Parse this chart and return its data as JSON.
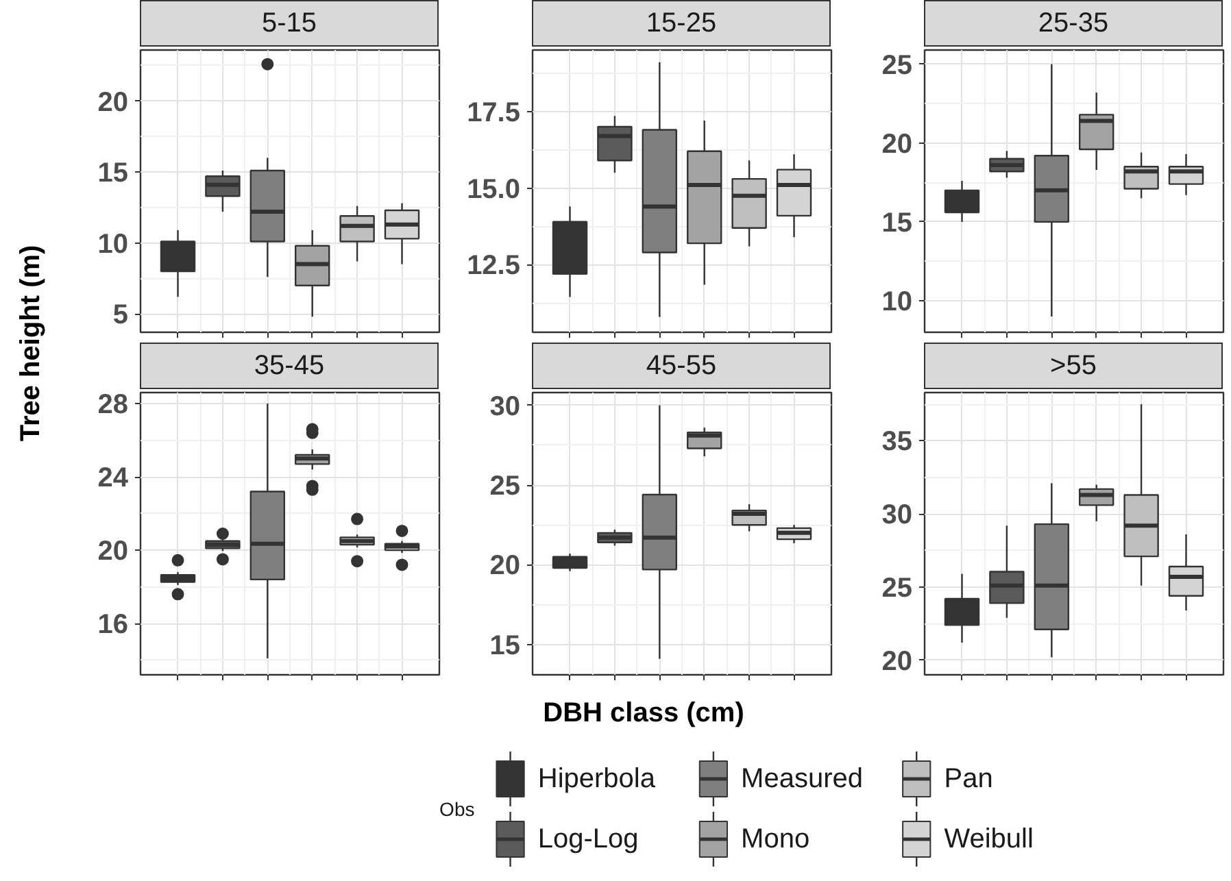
{
  "chart_data": [
    {
      "type": "box",
      "title": "5-15",
      "ylabel": "Tree height (m)",
      "legend": "bottom",
      "legend_title": "Obs",
      "categories": [
        null
      ],
      "ylim": [
        3.7,
        23.6
      ],
      "yticks": [
        5,
        10,
        15,
        20
      ],
      "grid": true,
      "series": [
        {
          "name": "Hiperbola",
          "color": "#333333",
          "boxes": [
            {
              "low": 6.2,
              "q1": 8.0,
              "median": 8.4,
              "q3": 10.1,
              "high": 10.9
            }
          ]
        },
        {
          "name": "Log-Log",
          "color": "#5a5a5a",
          "boxes": [
            {
              "low": 12.2,
              "q1": 13.3,
              "median": 14.1,
              "q3": 14.7,
              "high": 15.1
            }
          ]
        },
        {
          "name": "Measured",
          "color": "#7f7f7f",
          "boxes": [
            {
              "low": 7.6,
              "q1": 10.1,
              "median": 12.2,
              "q3": 15.1,
              "high": 16.0,
              "outliers": [
                22.6
              ]
            }
          ]
        },
        {
          "name": "Mono",
          "color": "#a3a3a3",
          "boxes": [
            {
              "low": 4.8,
              "q1": 7.0,
              "median": 8.5,
              "q3": 9.8,
              "high": 10.9
            }
          ]
        },
        {
          "name": "Pan",
          "color": "#bfbfbf",
          "boxes": [
            {
              "low": 8.7,
              "q1": 10.1,
              "median": 11.2,
              "q3": 11.9,
              "high": 12.6
            }
          ]
        },
        {
          "name": "Weibull",
          "color": "#d4d4d4",
          "boxes": [
            {
              "low": 8.5,
              "q1": 10.3,
              "median": 11.3,
              "q3": 12.3,
              "high": 12.8
            }
          ]
        }
      ]
    },
    {
      "type": "box",
      "title": "15-25",
      "categories": [
        null
      ],
      "ylim": [
        10.3,
        19.5
      ],
      "yticks": [
        {
          "value": 12.5,
          "label": "12.5"
        },
        {
          "value": 15,
          "label": "15.0"
        },
        {
          "value": 17.5,
          "label": "17.5"
        }
      ],
      "grid": true,
      "series": [
        {
          "color": "#333333",
          "boxes": [
            {
              "low": 11.45,
              "q1": 12.2,
              "median": 13.0,
              "q3": 13.9,
              "high": 14.4
            }
          ]
        },
        {
          "color": "#5a5a5a",
          "boxes": [
            {
              "low": 15.5,
              "q1": 15.9,
              "median": 16.7,
              "q3": 17.0,
              "high": 17.35
            }
          ]
        },
        {
          "color": "#7f7f7f",
          "boxes": [
            {
              "low": 10.8,
              "q1": 12.9,
              "median": 14.4,
              "q3": 16.9,
              "high": 19.1
            }
          ]
        },
        {
          "color": "#a3a3a3",
          "boxes": [
            {
              "low": 11.85,
              "q1": 13.2,
              "median": 15.1,
              "q3": 16.2,
              "high": 17.2
            }
          ]
        },
        {
          "color": "#bfbfbf",
          "boxes": [
            {
              "low": 13.1,
              "q1": 13.7,
              "median": 14.75,
              "q3": 15.3,
              "high": 15.9
            }
          ]
        },
        {
          "color": "#d4d4d4",
          "boxes": [
            {
              "low": 13.4,
              "q1": 14.1,
              "median": 15.1,
              "q3": 15.6,
              "high": 16.1
            }
          ]
        }
      ]
    },
    {
      "type": "box",
      "title": "25-35",
      "categories": [
        null
      ],
      "ylim": [
        8.0,
        25.9
      ],
      "yticks": [
        10,
        15,
        20,
        25
      ],
      "grid": true,
      "series": [
        {
          "color": "#333333",
          "boxes": [
            {
              "low": 15.0,
              "q1": 15.6,
              "median": 16.3,
              "q3": 17.0,
              "high": 17.6
            }
          ]
        },
        {
          "color": "#5a5a5a",
          "boxes": [
            {
              "low": 17.8,
              "q1": 18.2,
              "median": 18.6,
              "q3": 19.0,
              "high": 19.5
            }
          ]
        },
        {
          "color": "#7f7f7f",
          "boxes": [
            {
              "low": 9.0,
              "q1": 15.0,
              "median": 17.0,
              "q3": 19.2,
              "high": 25.0
            }
          ]
        },
        {
          "color": "#a3a3a3",
          "boxes": [
            {
              "low": 18.3,
              "q1": 19.6,
              "median": 21.4,
              "q3": 21.8,
              "high": 23.2
            }
          ]
        },
        {
          "color": "#bfbfbf",
          "boxes": [
            {
              "low": 16.5,
              "q1": 17.1,
              "median": 18.2,
              "q3": 18.5,
              "high": 19.4
            }
          ]
        },
        {
          "color": "#d4d4d4",
          "boxes": [
            {
              "low": 16.7,
              "q1": 17.4,
              "median": 18.2,
              "q3": 18.5,
              "high": 19.3
            }
          ]
        }
      ]
    },
    {
      "type": "box",
      "title": "35-45",
      "categories": [
        null
      ],
      "ylim": [
        13.2,
        28.6
      ],
      "yticks": [
        16,
        20,
        24,
        28
      ],
      "grid": true,
      "series": [
        {
          "color": "#333333",
          "boxes": [
            {
              "low": 18.1,
              "q1": 18.26,
              "median": 18.45,
              "q3": 18.65,
              "high": 18.8,
              "outliers": [
                19.45,
                17.6
              ]
            }
          ]
        },
        {
          "color": "#5a5a5a",
          "boxes": [
            {
              "low": 19.95,
              "q1": 20.1,
              "median": 20.3,
              "q3": 20.5,
              "high": 20.65,
              "outliers": [
                20.9,
                19.5
              ]
            }
          ]
        },
        {
          "color": "#7f7f7f",
          "boxes": [
            {
              "low": 14.1,
              "q1": 18.4,
              "median": 20.35,
              "q3": 23.2,
              "high": 28.0
            }
          ]
        },
        {
          "color": "#a3a3a3",
          "boxes": [
            {
              "low": 24.4,
              "q1": 24.7,
              "median": 25.0,
              "q3": 25.2,
              "high": 25.5,
              "outliers": [
                26.4,
                26.6,
                23.3,
                23.5
              ]
            }
          ]
        },
        {
          "color": "#bfbfbf",
          "boxes": [
            {
              "low": 20.15,
              "q1": 20.3,
              "median": 20.5,
              "q3": 20.7,
              "high": 20.85,
              "outliers": [
                21.7,
                19.4
              ]
            }
          ]
        },
        {
          "color": "#d4d4d4",
          "boxes": [
            {
              "low": 19.85,
              "q1": 20.0,
              "median": 20.2,
              "q3": 20.35,
              "high": 20.5,
              "outliers": [
                21.05,
                19.2
              ]
            }
          ]
        }
      ]
    },
    {
      "type": "box",
      "title": "45-55",
      "xlabel": "DBH class (cm)",
      "categories": [
        null
      ],
      "ylim": [
        13.1,
        30.8
      ],
      "yticks": [
        15,
        20,
        25,
        30
      ],
      "grid": true,
      "series": [
        {
          "color": "#333333",
          "boxes": [
            {
              "low": 19.6,
              "q1": 19.8,
              "median": 20.1,
              "q3": 20.5,
              "high": 20.7
            }
          ]
        },
        {
          "color": "#5a5a5a",
          "boxes": [
            {
              "low": 21.2,
              "q1": 21.4,
              "median": 21.7,
              "q3": 22.0,
              "high": 22.2
            }
          ]
        },
        {
          "color": "#7f7f7f",
          "boxes": [
            {
              "low": 14.1,
              "q1": 19.7,
              "median": 21.7,
              "q3": 24.4,
              "high": 30.0
            }
          ]
        },
        {
          "color": "#a3a3a3",
          "boxes": [
            {
              "low": 26.8,
              "q1": 27.3,
              "median": 28.1,
              "q3": 28.3,
              "high": 28.6
            }
          ]
        },
        {
          "color": "#bfbfbf",
          "boxes": [
            {
              "low": 22.1,
              "q1": 22.5,
              "median": 23.2,
              "q3": 23.4,
              "high": 23.8
            }
          ]
        },
        {
          "color": "#d4d4d4",
          "boxes": [
            {
              "low": 21.35,
              "q1": 21.6,
              "median": 22.0,
              "q3": 22.3,
              "high": 22.5
            }
          ]
        }
      ]
    },
    {
      "type": "box",
      "title": ">55",
      "categories": [
        null
      ],
      "ylim": [
        19.0,
        38.3
      ],
      "yticks": [
        20,
        25,
        30,
        35
      ],
      "grid": true,
      "series": [
        {
          "color": "#333333",
          "boxes": [
            {
              "low": 21.2,
              "q1": 22.4,
              "median": 23.2,
              "q3": 24.2,
              "high": 25.9
            }
          ]
        },
        {
          "color": "#5a5a5a",
          "boxes": [
            {
              "low": 22.9,
              "q1": 23.9,
              "median": 25.1,
              "q3": 26.05,
              "high": 29.2
            }
          ]
        },
        {
          "color": "#7f7f7f",
          "boxes": [
            {
              "low": 20.2,
              "q1": 22.1,
              "median": 25.1,
              "q3": 29.3,
              "high": 32.1
            }
          ]
        },
        {
          "color": "#a3a3a3",
          "boxes": [
            {
              "low": 29.5,
              "q1": 30.6,
              "median": 31.3,
              "q3": 31.7,
              "high": 32.0
            }
          ]
        },
        {
          "color": "#bfbfbf",
          "boxes": [
            {
              "low": 25.1,
              "q1": 27.1,
              "median": 29.2,
              "q3": 31.3,
              "high": 37.5
            }
          ]
        },
        {
          "color": "#d4d4d4",
          "boxes": [
            {
              "low": 23.4,
              "q1": 24.4,
              "median": 25.7,
              "q3": 26.4,
              "high": 28.6
            }
          ]
        }
      ]
    }
  ]
}
